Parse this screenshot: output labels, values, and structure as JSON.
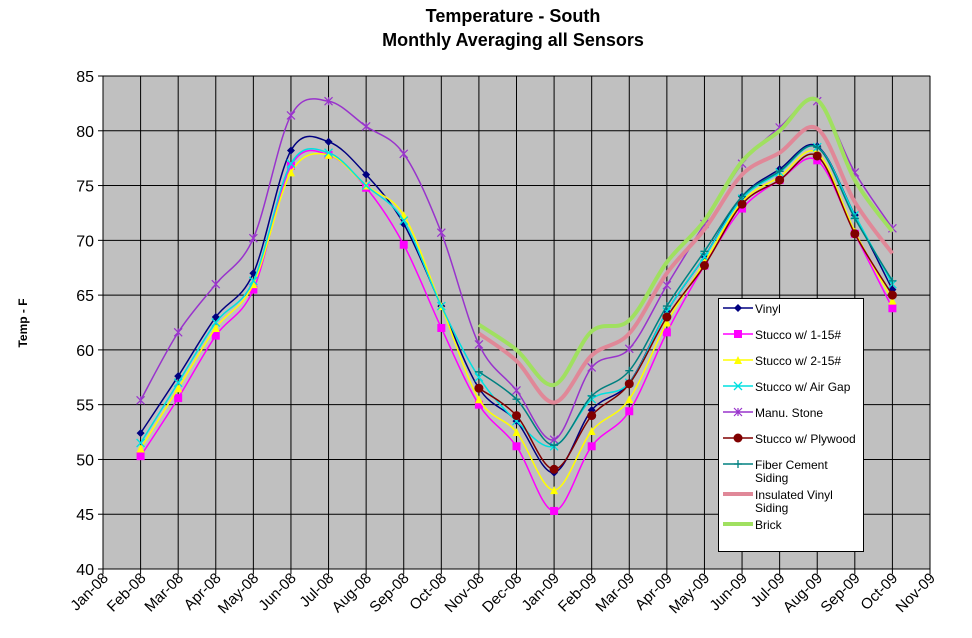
{
  "chart_data": {
    "type": "line",
    "title": "Temperature - South",
    "subtitle": "Monthly Averaging all Sensors",
    "y_label": "Temp - F",
    "categories": [
      "Jan-08",
      "Feb-08",
      "Mar-08",
      "Apr-08",
      "May-08",
      "Jun-08",
      "Jul-08",
      "Aug-08",
      "Sep-08",
      "Oct-08",
      "Nov-08",
      "Dec-08",
      "Jan-09",
      "Feb-09",
      "Mar-09",
      "Apr-09",
      "May-09",
      "Jun-09",
      "Jul-09",
      "Aug-09",
      "Sep-09",
      "Oct-09",
      "Nov-09"
    ],
    "ylim": [
      40,
      85
    ],
    "yticks": [
      40,
      45,
      50,
      55,
      60,
      65,
      70,
      75,
      80,
      85
    ],
    "grid": true,
    "series": [
      {
        "name": "Vinyl",
        "color": "#000080",
        "marker": "diamond",
        "values": [
          null,
          52.4,
          57.6,
          63,
          67,
          78.2,
          79,
          76,
          71.5,
          64,
          56.5,
          53.5,
          48.8,
          54.5,
          57,
          63.5,
          68.5,
          74,
          76.5,
          78.6,
          72.3,
          65.5,
          null
        ]
      },
      {
        "name": "Stucco w/ 1-15#",
        "color": "#ff00ff",
        "marker": "square",
        "values": [
          null,
          50.3,
          55.6,
          61.3,
          65.5,
          76.8,
          77.8,
          74.8,
          69.6,
          62,
          55,
          51.2,
          45.3,
          51.2,
          54.4,
          61.6,
          67.7,
          72.9,
          75.5,
          77.3,
          70.6,
          63.8,
          null
        ]
      },
      {
        "name": "Stucco w/ 2-15#",
        "color": "#ffff00",
        "marker": "triangle",
        "values": [
          null,
          51,
          56.5,
          62,
          66,
          76.2,
          77.8,
          75,
          72.3,
          64,
          55.5,
          52.5,
          47.2,
          52.6,
          55.5,
          62.5,
          68,
          73.5,
          75.8,
          78,
          70.8,
          64.5,
          null
        ]
      },
      {
        "name": "Stucco w/ Air Gap",
        "color": "#00e0e0",
        "marker": "x",
        "values": [
          null,
          51.5,
          57,
          62.5,
          66.3,
          77,
          78,
          75,
          71.8,
          64,
          57.5,
          53.5,
          51.2,
          55.5,
          57,
          63.5,
          68.5,
          73.8,
          76.2,
          78.5,
          72.3,
          66,
          null
        ]
      },
      {
        "name": "Manu. Stone",
        "color": "#9933cc",
        "marker": "star",
        "values": [
          null,
          55.4,
          61.6,
          66,
          70.2,
          81.4,
          82.7,
          80.4,
          77.9,
          70.7,
          60.5,
          56.3,
          51.8,
          58.4,
          60.1,
          65.9,
          71.5,
          77,
          80.3,
          82.7,
          76.2,
          71.1,
          null
        ]
      },
      {
        "name": "Stucco w/ Plywood",
        "color": "#800000",
        "marker": "circle",
        "values": [
          null,
          null,
          null,
          null,
          null,
          null,
          null,
          null,
          null,
          null,
          56.5,
          54,
          49.1,
          54,
          56.9,
          63,
          67.7,
          73.3,
          75.5,
          77.7,
          70.6,
          65,
          null
        ]
      },
      {
        "name": "Fiber Cement Siding",
        "color": "#008080",
        "marker": "plus",
        "values": [
          null,
          null,
          null,
          null,
          null,
          null,
          null,
          null,
          null,
          null,
          58,
          55.5,
          51.3,
          55.8,
          58.1,
          64,
          69,
          74,
          76.3,
          78.5,
          72,
          66.3,
          null
        ]
      },
      {
        "name": "Insulated Vinyl Siding",
        "color": "#e08898",
        "marker": "none",
        "values": [
          null,
          null,
          null,
          null,
          null,
          null,
          null,
          null,
          null,
          null,
          61.5,
          59,
          55.2,
          59.5,
          61.5,
          67,
          71,
          76,
          78,
          80.2,
          73.5,
          68.8,
          null
        ]
      },
      {
        "name": "Brick",
        "color": "#a0e060",
        "marker": "none",
        "values": [
          null,
          null,
          null,
          null,
          null,
          null,
          null,
          null,
          null,
          null,
          62.3,
          60,
          56.8,
          61.7,
          62.7,
          68,
          71.8,
          77.2,
          80,
          82.8,
          75.5,
          70.8,
          null
        ]
      }
    ]
  }
}
